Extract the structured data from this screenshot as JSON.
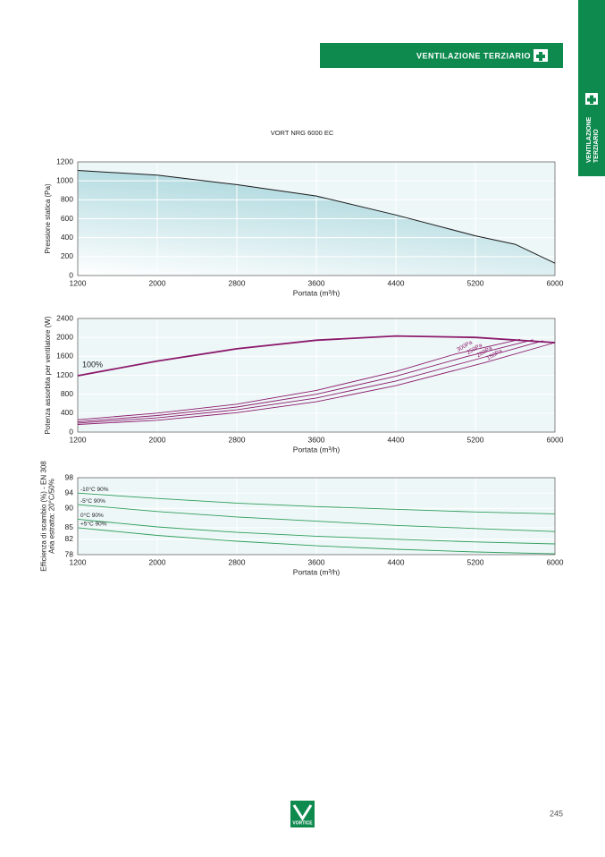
{
  "header": {
    "section": "VENTILAZIONE TERZIARIO",
    "tab": [
      "VENTILAZIONE",
      "TERZIARIO"
    ]
  },
  "subtitle": "VORT NRG 6000 EC",
  "chart_data": [
    {
      "type": "area",
      "ylabel": [
        "Pressione statica (Pa)"
      ],
      "xlabel": "Portata (m³/h)",
      "xlim": [
        1200,
        6000
      ],
      "xticks": [
        1200,
        2000,
        2800,
        3600,
        4400,
        5200,
        6000
      ],
      "ylim": [
        0,
        1200
      ],
      "yticks": [
        0,
        200,
        400,
        600,
        800,
        1000,
        1200
      ],
      "grid": true,
      "series": [
        {
          "name": null,
          "color": "#1a1a1a",
          "x": [
            1200,
            2000,
            2800,
            3600,
            4400,
            5200,
            5600,
            6000
          ],
          "values": [
            1110,
            1060,
            960,
            840,
            640,
            420,
            330,
            130
          ]
        }
      ]
    },
    {
      "type": "line",
      "ylabel": [
        "Potenza assorbita per ventilatore (W)"
      ],
      "xlabel": "Portata (m³/h)",
      "xlim": [
        1200,
        6000
      ],
      "xticks": [
        1200,
        2000,
        2800,
        3600,
        4400,
        5200,
        6000
      ],
      "ylim": [
        0,
        2400
      ],
      "yticks": [
        0,
        400,
        800,
        1200,
        1600,
        2000,
        2400
      ],
      "grid": true,
      "series": [
        {
          "name": "100%",
          "color": "#8b1a6b",
          "x": [
            1200,
            2000,
            2800,
            3600,
            4400,
            5200,
            6000
          ],
          "values": [
            1190,
            1500,
            1760,
            1940,
            2030,
            2000,
            1890
          ]
        },
        {
          "name": "300Pa",
          "color": "#8b1a6b",
          "x": [
            1200,
            2000,
            2800,
            3600,
            4400,
            5000,
            5650
          ],
          "values": [
            260,
            400,
            590,
            880,
            1280,
            1650,
            1960
          ]
        },
        {
          "name": "250Pa",
          "color": "#8b1a6b",
          "x": [
            1200,
            2000,
            2800,
            3600,
            4400,
            5100,
            5780
          ],
          "values": [
            220,
            350,
            530,
            800,
            1180,
            1590,
            1950
          ]
        },
        {
          "name": "200Pa",
          "color": "#8b1a6b",
          "x": [
            1200,
            2000,
            2800,
            3600,
            4400,
            5200,
            5880
          ],
          "values": [
            190,
            300,
            470,
            720,
            1080,
            1530,
            1930
          ]
        },
        {
          "name": "150Pa",
          "color": "#8b1a6b",
          "x": [
            1200,
            2000,
            2800,
            3600,
            4400,
            5300,
            6000
          ],
          "values": [
            160,
            250,
            410,
            640,
            980,
            1470,
            1890
          ]
        }
      ]
    },
    {
      "type": "line",
      "ylabel": [
        "Efficienza di scambio (%) - EN 308",
        "Aria estratta: 20°C/50%"
      ],
      "xlabel": "Portata (m³/h)",
      "xlim": [
        1200,
        6000
      ],
      "xticks": [
        1200,
        2000,
        2800,
        3600,
        4400,
        5200,
        6000
      ],
      "ylim": [
        78,
        98
      ],
      "yticks": [
        78,
        82,
        85,
        90,
        94,
        98
      ],
      "grid": true,
      "series": [
        {
          "name": "-10°C 90%",
          "color": "#2e9e5b",
          "x": [
            1200,
            2000,
            2800,
            3600,
            4400,
            5200,
            6000
          ],
          "values": [
            94,
            92.6,
            91.4,
            90.5,
            89.8,
            89.1,
            88.6
          ]
        },
        {
          "name": "-5°C 90%",
          "color": "#2e9e5b",
          "x": [
            1200,
            2000,
            2800,
            3600,
            4400,
            5200,
            6000
          ],
          "values": [
            91,
            89.2,
            87.8,
            86.7,
            85.6,
            84.8,
            84
          ]
        },
        {
          "name": "0°C 90%",
          "color": "#2e9e5b",
          "x": [
            1200,
            2000,
            2800,
            3600,
            4400,
            5200,
            6000
          ],
          "values": [
            87.2,
            85.2,
            83.8,
            82.8,
            82,
            81.3,
            80.8
          ]
        },
        {
          "name": "+5°C 90%",
          "color": "#2e9e5b",
          "x": [
            1200,
            2000,
            2800,
            3600,
            4400,
            5200,
            6000
          ],
          "values": [
            85,
            83,
            81.5,
            80.3,
            79.4,
            78.7,
            78.2
          ]
        }
      ]
    }
  ],
  "footer": {
    "logo": "VORTICE",
    "page": "245"
  }
}
